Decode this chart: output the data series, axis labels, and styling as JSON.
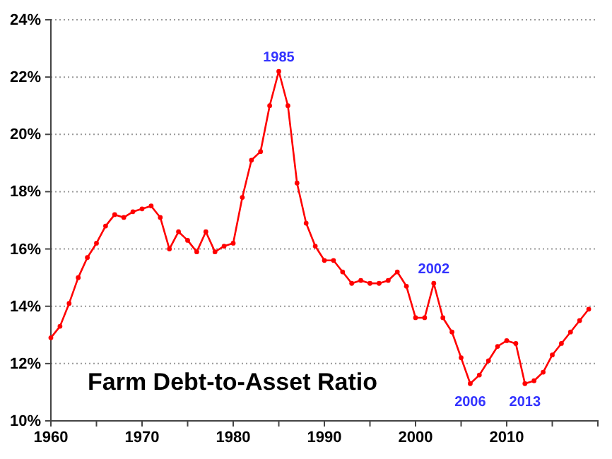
{
  "chart_data": {
    "type": "line",
    "title": "Farm Debt-to-Asset Ratio",
    "x": [
      1960,
      1961,
      1962,
      1963,
      1964,
      1965,
      1966,
      1967,
      1968,
      1969,
      1970,
      1971,
      1972,
      1973,
      1974,
      1975,
      1976,
      1977,
      1978,
      1979,
      1980,
      1981,
      1982,
      1983,
      1984,
      1985,
      1986,
      1987,
      1988,
      1989,
      1990,
      1991,
      1992,
      1993,
      1994,
      1995,
      1996,
      1997,
      1998,
      1999,
      2000,
      2001,
      2002,
      2003,
      2004,
      2005,
      2006,
      2007,
      2008,
      2009,
      2010,
      2011,
      2012,
      2013,
      2014,
      2015,
      2016,
      2017,
      2018,
      2019
    ],
    "series": [
      {
        "color": "#ff0000",
        "values": [
          12.9,
          13.3,
          14.1,
          15.0,
          15.7,
          16.2,
          16.8,
          17.2,
          17.1,
          17.3,
          17.4,
          17.5,
          17.1,
          16.0,
          16.6,
          16.3,
          15.9,
          16.6,
          15.9,
          16.1,
          16.2,
          17.8,
          19.1,
          19.4,
          21.0,
          22.2,
          21.0,
          18.3,
          16.9,
          16.1,
          15.6,
          15.6,
          15.2,
          14.8,
          14.9,
          14.8,
          14.8,
          14.9,
          15.2,
          14.7,
          13.6,
          13.6,
          14.8,
          13.6,
          13.1,
          12.2,
          11.3,
          11.6,
          12.1,
          12.6,
          12.8,
          12.7,
          11.3,
          11.4,
          11.7,
          12.3,
          12.7,
          13.1,
          13.5,
          13.9
        ]
      }
    ],
    "xlim": [
      1960,
      2020
    ],
    "xticks": [
      1960,
      {
        "value": 1965,
        "label": null
      },
      1970,
      {
        "value": 1975,
        "label": null
      },
      1980,
      {
        "value": 1985,
        "label": null
      },
      1990,
      {
        "value": 1995,
        "label": null
      },
      2000,
      {
        "value": 2005,
        "label": null
      },
      2010,
      {
        "value": 2015,
        "label": null
      },
      {
        "value": 2020,
        "label": null
      }
    ],
    "ylim": [
      10,
      24
    ],
    "yticks": [
      {
        "value": 10,
        "label": "10%"
      },
      {
        "value": 12,
        "label": "12%"
      },
      {
        "value": 14,
        "label": "14%"
      },
      {
        "value": 16,
        "label": "16%"
      },
      {
        "value": 18,
        "label": "18%"
      },
      {
        "value": 20,
        "label": "20%"
      },
      {
        "value": 22,
        "label": "22%"
      },
      {
        "value": 24,
        "label": "24%"
      }
    ],
    "grid": "y",
    "marker": "circle",
    "line_style": "solid",
    "annotations": [
      {
        "text": "1985",
        "x": 1985,
        "y": 22.2
      },
      {
        "text": "2002",
        "x": 2002,
        "y": 14.8
      },
      {
        "text": "2006",
        "x": 2006,
        "y": 11.3
      },
      {
        "text": "2013",
        "x": 2012,
        "y": 11.3
      }
    ]
  }
}
